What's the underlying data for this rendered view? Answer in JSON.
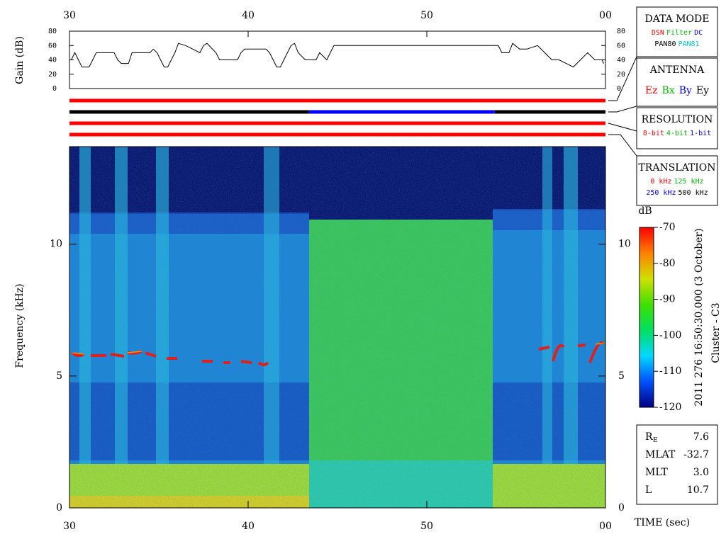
{
  "chart_data": [
    {
      "type": "line",
      "y_label": "Gain (dB)",
      "color": "#000000",
      "x": [
        30.1,
        30.3,
        30.5,
        30.7,
        31.1,
        31.3,
        31.5,
        32.5,
        32.7,
        32.9,
        33.3,
        33.5,
        34.5,
        34.7,
        34.9,
        35.1,
        35.3,
        35.5,
        35.7,
        35.9,
        36.1,
        36.5,
        36.9,
        37.3,
        37.5,
        37.7,
        38.2,
        38.4,
        39.4,
        39.6,
        39.8,
        41.0,
        41.2,
        41.4,
        41.6,
        41.8,
        42.0,
        42.2,
        42.4,
        42.6,
        42.8,
        43.2,
        43.8,
        44.0,
        44.4,
        44.6,
        44.8,
        54.0,
        54.2,
        54.6,
        54.8,
        55.2,
        55.6,
        56.2,
        56.6,
        57.0,
        57.4,
        57.8,
        58.2,
        58.6,
        59.0,
        59.4,
        59.8,
        59.9
      ],
      "values": [
        40,
        50,
        40,
        30,
        30,
        40,
        50,
        50,
        40,
        35,
        35,
        50,
        50,
        55,
        50,
        40,
        30,
        30,
        40,
        50,
        63,
        60,
        55,
        50,
        60,
        63,
        50,
        40,
        40,
        50,
        55,
        55,
        50,
        40,
        30,
        30,
        40,
        50,
        60,
        63,
        50,
        40,
        40,
        50,
        40,
        50,
        60,
        60,
        50,
        50,
        63,
        55,
        55,
        60,
        50,
        40,
        40,
        35,
        30,
        40,
        50,
        40,
        40,
        35
      ],
      "xlim": [
        30,
        60
      ],
      "xticks": [
        30,
        40,
        50,
        {
          "value": 60,
          "label": "00"
        }
      ],
      "ylim": [
        0,
        80
      ],
      "yticks": [
        0,
        20,
        40,
        60,
        80
      ]
    },
    {
      "type": "status",
      "xlim": [
        30,
        60
      ],
      "rows": [
        [
          {
            "start": 30,
            "end": 60,
            "color": "#ff0000"
          }
        ],
        [
          {
            "start": 30,
            "end": 43.4,
            "color": "#000000"
          },
          {
            "start": 43.4,
            "end": 53.8,
            "color": "#0000ff"
          },
          {
            "start": 53.8,
            "end": 60,
            "color": "#000000"
          }
        ],
        [
          {
            "start": 30,
            "end": 60,
            "color": "#ff0000"
          }
        ],
        [
          {
            "start": 30,
            "end": 60,
            "color": "#ff0000"
          }
        ]
      ]
    },
    {
      "type": "spectrogram",
      "y_label": "Frequency (kHz)",
      "x_label": "TIME (sec)",
      "title": "2011 276 16:50:30.000 (3 October)",
      "subtitle": "Cluster - C3",
      "xlim": [
        30,
        60
      ],
      "xticks": [
        30,
        40,
        50,
        {
          "value": 60,
          "label": "00"
        }
      ],
      "ylim": [
        0,
        13.7
      ],
      "yticks": [
        0,
        5,
        10
      ],
      "colorbar": {
        "label": "dB",
        "lim": [
          -120,
          -70
        ],
        "ticks": [
          -120,
          -110,
          -100,
          -90,
          -80,
          -70
        ],
        "colors": [
          "#000080",
          "#0050ff",
          "#00d8ff",
          "#00e060",
          "#40e000",
          "#d0e000",
          "#ff8000",
          "#ff0000"
        ]
      }
    }
  ],
  "legend_panels": [
    {
      "title": "DATA MODE",
      "rows": [
        [
          {
            "label": "DSN",
            "color": "#ff0000"
          },
          {
            "label": "Filter",
            "color": "#00c000"
          },
          {
            "label": "DC",
            "color": "#0000ff"
          }
        ],
        [
          {
            "label": "PAN80",
            "color": "#000000"
          },
          {
            "label": "PAN81",
            "color": "#00c8c8"
          }
        ]
      ]
    },
    {
      "title": "ANTENNA",
      "rows": [
        [
          {
            "label": "Ez",
            "color": "#ff0000"
          },
          {
            "label": "Bx",
            "color": "#00c000"
          },
          {
            "label": "By",
            "color": "#0000ff"
          },
          {
            "label": "Ey",
            "color": "#000000"
          }
        ]
      ]
    },
    {
      "title": "RESOLUTION",
      "rows": [
        [
          {
            "label": "8-bit",
            "color": "#ff0000"
          },
          {
            "label": "4-bit",
            "color": "#00c000"
          },
          {
            "label": "1-bit",
            "color": "#0000ff"
          }
        ]
      ]
    },
    {
      "title": "TRANSLATION",
      "rows": [
        [
          {
            "label": "0 kHz",
            "color": "#ff0000"
          },
          {
            "label": "125 kHz",
            "color": "#00c000"
          }
        ],
        [
          {
            "label": "250 kHz",
            "color": "#0000ff"
          },
          {
            "label": "500 kHz",
            "color": "#000000"
          }
        ]
      ]
    }
  ],
  "orbit": [
    {
      "label": "R",
      "subscript": "E",
      "value": "7.6"
    },
    {
      "label": "MLAT",
      "value": "-32.7"
    },
    {
      "label": "MLT",
      "value": "3.0"
    },
    {
      "label": "L",
      "value": "10.7"
    }
  ]
}
